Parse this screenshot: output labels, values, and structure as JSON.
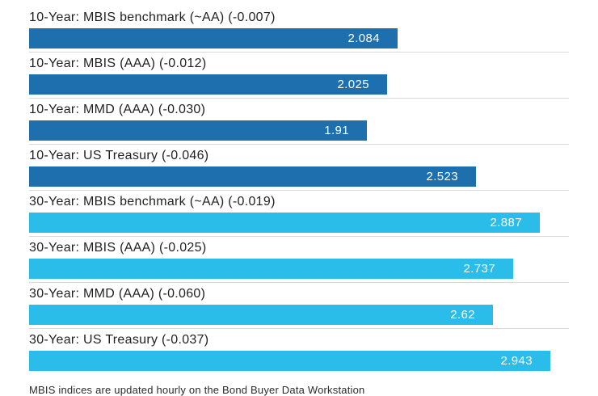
{
  "chart_data": {
    "type": "bar",
    "orientation": "horizontal",
    "x_range": [
      0,
      3.05
    ],
    "grid": "row-dividers-only",
    "colors": {
      "ten_year": "#1e6fad",
      "thirty_year": "#2bbde9"
    },
    "bars": [
      {
        "label": "10-Year: MBIS benchmark (~AA) (-0.007)",
        "value": 2.084,
        "display_value": "2.084",
        "group": "10-year"
      },
      {
        "label": "10-Year: MBIS (AAA) (-0.012)",
        "value": 2.025,
        "display_value": "2.025",
        "group": "10-year"
      },
      {
        "label": "10-Year: MMD (AAA) (-0.030)",
        "value": 1.91,
        "display_value": "1.91",
        "group": "10-year"
      },
      {
        "label": "10-Year: US Treasury (-0.046)",
        "value": 2.523,
        "display_value": "2.523",
        "group": "10-year"
      },
      {
        "label": "30-Year: MBIS benchmark (~AA) (-0.019)",
        "value": 2.887,
        "display_value": "2.887",
        "group": "30-year"
      },
      {
        "label": "30-Year: MBIS (AAA) (-0.025)",
        "value": 2.737,
        "display_value": "2.737",
        "group": "30-year"
      },
      {
        "label": "30-Year: MMD (AAA) (-0.060)",
        "value": 2.62,
        "display_value": "2.62",
        "group": "30-year"
      },
      {
        "label": "30-Year: US Treasury (-0.037)",
        "value": 2.943,
        "display_value": "2.943",
        "group": "30-year"
      }
    ],
    "footer": "MBIS indices are updated hourly on the Bond Buyer Data Workstation"
  }
}
